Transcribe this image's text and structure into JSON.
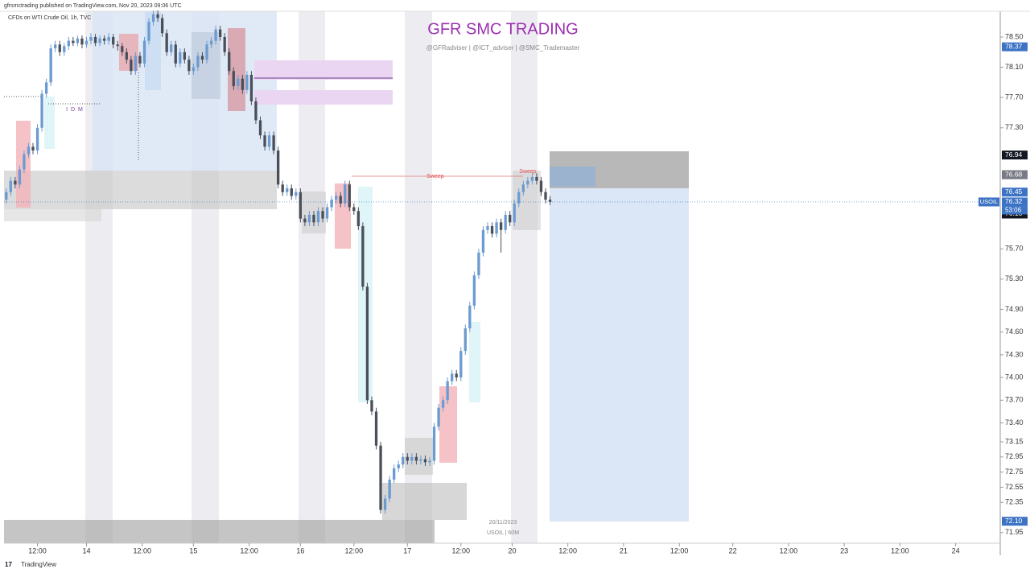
{
  "header": {
    "publisher": "gfrsmctrading published on TradingView.com, Nov 20, 2023 09:06 UTC",
    "symbol": "CFDs on WTI Crude Oil, 1h, TVC"
  },
  "footer": {
    "brand": "TradingView"
  },
  "chart_data": {
    "type": "candlestick",
    "title": "GFR SMC TRADING",
    "subtitle": "@GFRadviser  |  @ICT_adviser  |  @SMC_Trademaster",
    "up_color": "#6b9bd1",
    "down_color": "#4b4f5a",
    "annotations": [
      "I D M",
      "Sweep",
      "Sweep",
      "20/11/2023",
      "USOIL | 60M"
    ],
    "symbol_label": "USOIL",
    "countdown": "53:06",
    "price_labels": [
      {
        "value": 78.37,
        "color": "#3d73c4"
      },
      {
        "value": 76.94,
        "color": "#131722"
      },
      {
        "value": 76.68,
        "color": "#787b86"
      },
      {
        "value": 76.68,
        "color": "#787b86"
      },
      {
        "value": 76.45,
        "color": "#3d73c4"
      },
      {
        "value": 76.32,
        "color": "#3d73c4"
      },
      {
        "value": 76.17,
        "color": "#131722"
      },
      {
        "value": 76.16,
        "color": "#131722"
      },
      {
        "value": 72.1,
        "label": "72.10",
        "color": "#3d73c4"
      }
    ],
    "xlim": [
      -0.5,
      223
    ],
    "ylim": [
      71.81,
      78.84
    ],
    "xticks": [
      {
        "value": 7,
        "label": "12:00"
      },
      {
        "value": 18,
        "label": "14"
      },
      {
        "value": 30.5,
        "label": "12:00"
      },
      {
        "value": 42,
        "label": "15"
      },
      {
        "value": 54.5,
        "label": "12:00"
      },
      {
        "value": 66,
        "label": "16"
      },
      {
        "value": 78,
        "label": "12:00"
      },
      {
        "value": 90,
        "label": "17"
      },
      {
        "value": 102,
        "label": "12:00"
      },
      {
        "value": 113.5,
        "label": "20"
      },
      {
        "value": 126,
        "label": "12:00"
      },
      {
        "value": 138.5,
        "label": "21"
      },
      {
        "value": 151,
        "label": "12:00"
      },
      {
        "value": 163,
        "label": "22"
      },
      {
        "value": 175.5,
        "label": "12:00"
      },
      {
        "value": 188,
        "label": "23"
      },
      {
        "value": 200.5,
        "label": "12:00"
      },
      {
        "value": 213,
        "label": "24"
      }
    ],
    "yticks": [
      {
        "value": 78.5,
        "label": "78.50"
      },
      {
        "value": 78.1,
        "label": "78.10"
      },
      {
        "value": 77.7,
        "label": "77.70"
      },
      {
        "value": 77.3,
        "label": "77.30"
      },
      {
        "value": 75.7,
        "label": "75.70"
      },
      {
        "value": 75.3,
        "label": "75.30"
      },
      {
        "value": 74.9,
        "label": "74.90"
      },
      {
        "value": 74.6,
        "label": "74.60"
      },
      {
        "value": 74.3,
        "label": "74.30"
      },
      {
        "value": 74,
        "label": "74.00"
      },
      {
        "value": 73.7,
        "label": "73.70"
      },
      {
        "value": 73.4,
        "label": "73.40"
      },
      73.15,
      72.95,
      72.75,
      72.55,
      72.35,
      {
        "value": 71.95,
        "label": "71.95"
      }
    ],
    "x": [
      0,
      1,
      2,
      3,
      4,
      5,
      6,
      7,
      8,
      9,
      10,
      11,
      12,
      13,
      14,
      15,
      16,
      17,
      18,
      19,
      20,
      21,
      22,
      23,
      24,
      25,
      26,
      27,
      28,
      29,
      30,
      31,
      32,
      33,
      34,
      35,
      36,
      37,
      38,
      39,
      40,
      41,
      42,
      43,
      44,
      45,
      46,
      47,
      48,
      49,
      50,
      51,
      52,
      53,
      54,
      55,
      56,
      57,
      58,
      59,
      60,
      61,
      62,
      63,
      64,
      65,
      66,
      67,
      68,
      69,
      70,
      71,
      72,
      73,
      74,
      75,
      76,
      77,
      78,
      79,
      80,
      81,
      82,
      83,
      84,
      85,
      86,
      87,
      88,
      89,
      90,
      91,
      92,
      93,
      94,
      95,
      96,
      97,
      98,
      99,
      100,
      101,
      102,
      103,
      104,
      105,
      106,
      107,
      108,
      109,
      110,
      111,
      112,
      113,
      114,
      115,
      116,
      117,
      118,
      119,
      120,
      121,
      122
    ],
    "ohlc": [
      [
        76.35,
        76.5,
        76.3,
        76.45
      ],
      [
        76.45,
        76.65,
        76.4,
        76.6
      ],
      [
        76.6,
        76.65,
        76.5,
        76.55
      ],
      [
        76.55,
        76.8,
        76.5,
        76.75
      ],
      [
        76.75,
        77,
        76.7,
        76.95
      ],
      [
        76.95,
        77.1,
        76.9,
        77.05
      ],
      [
        77.05,
        77.1,
        76.95,
        77
      ],
      [
        77,
        77.35,
        76.95,
        77.3
      ],
      [
        77.3,
        77.8,
        77.25,
        77.75
      ],
      [
        77.75,
        77.95,
        77.7,
        77.9
      ],
      [
        77.9,
        78.4,
        77.85,
        78.35
      ],
      [
        78.35,
        78.45,
        78.3,
        78.4
      ],
      [
        78.4,
        78.45,
        78.25,
        78.3
      ],
      [
        78.3,
        78.42,
        78.25,
        78.38
      ],
      [
        78.38,
        78.5,
        78.33,
        78.45
      ],
      [
        78.45,
        78.5,
        78.38,
        78.42
      ],
      [
        78.42,
        78.52,
        78.38,
        78.48
      ],
      [
        78.48,
        78.52,
        78.35,
        78.4
      ],
      [
        78.4,
        78.5,
        78.36,
        78.45
      ],
      [
        78.45,
        78.55,
        78.4,
        78.5
      ],
      [
        78.5,
        78.54,
        78.38,
        78.42
      ],
      [
        78.42,
        78.52,
        78.38,
        78.48
      ],
      [
        78.48,
        78.52,
        78.4,
        78.45
      ],
      [
        78.45,
        78.55,
        78.4,
        78.5
      ],
      [
        78.5,
        78.54,
        78.35,
        78.4
      ],
      [
        78.4,
        78.45,
        78.32,
        78.38
      ],
      [
        78.38,
        78.42,
        78.25,
        78.3
      ],
      [
        78.3,
        78.35,
        78.15,
        78.2
      ],
      [
        78.2,
        78.25,
        78,
        78.05
      ],
      [
        78.05,
        78.3,
        78,
        78.25
      ],
      [
        78.25,
        78.3,
        78.1,
        78.15
      ],
      [
        78.15,
        78.5,
        78.1,
        78.45
      ],
      [
        78.45,
        78.75,
        78.4,
        78.7
      ],
      [
        78.7,
        78.85,
        78.65,
        78.8
      ],
      [
        78.8,
        78.85,
        78.7,
        78.75
      ],
      [
        78.75,
        78.8,
        78.5,
        78.55
      ],
      [
        78.55,
        78.6,
        78.25,
        78.3
      ],
      [
        78.3,
        78.45,
        78.25,
        78.4
      ],
      [
        78.4,
        78.45,
        78.1,
        78.15
      ],
      [
        78.15,
        78.35,
        78.1,
        78.3
      ],
      [
        78.3,
        78.35,
        78.15,
        78.2
      ],
      [
        78.2,
        78.25,
        78,
        78.05
      ],
      [
        78.05,
        78.15,
        78,
        78.1
      ],
      [
        78.1,
        78.3,
        78.05,
        78.25
      ],
      [
        78.25,
        78.3,
        78.15,
        78.2
      ],
      [
        78.2,
        78.45,
        78.15,
        78.4
      ],
      [
        78.4,
        78.5,
        78.35,
        78.45
      ],
      [
        78.45,
        78.65,
        78.4,
        78.6
      ],
      [
        78.6,
        78.65,
        78.45,
        78.5
      ],
      [
        78.5,
        78.55,
        78.25,
        78.3
      ],
      [
        78.3,
        78.35,
        78,
        78.05
      ],
      [
        78.05,
        78.1,
        77.8,
        77.85
      ],
      [
        77.85,
        78,
        77.8,
        77.95
      ],
      [
        77.95,
        78,
        77.75,
        77.8
      ],
      [
        77.8,
        78.05,
        77.75,
        78
      ],
      [
        78,
        78.05,
        77.6,
        77.65
      ],
      [
        77.65,
        77.7,
        77.35,
        77.4
      ],
      [
        77.4,
        77.45,
        77.15,
        77.2
      ],
      [
        77.2,
        77.25,
        77,
        77.05
      ],
      [
        77.05,
        77.25,
        77,
        77.2
      ],
      [
        77.2,
        77.25,
        76.95,
        77
      ],
      [
        77,
        77.05,
        76.5,
        76.55
      ],
      [
        76.55,
        76.6,
        76.4,
        76.45
      ],
      [
        76.45,
        76.55,
        76.4,
        76.5
      ],
      [
        76.5,
        76.55,
        76.35,
        76.4
      ],
      [
        76.4,
        76.5,
        76.35,
        76.45
      ],
      [
        76.45,
        76.5,
        76.05,
        76.1
      ],
      [
        76.1,
        76.15,
        76,
        76.05
      ],
      [
        76.05,
        76.2,
        76,
        76.15
      ],
      [
        76.15,
        76.2,
        76,
        76.05
      ],
      [
        76.05,
        76.25,
        76,
        76.2
      ],
      [
        76.2,
        76.25,
        76.05,
        76.1
      ],
      [
        76.1,
        76.3,
        76.05,
        76.25
      ],
      [
        76.25,
        76.4,
        76.2,
        76.35
      ],
      [
        76.35,
        76.45,
        76.3,
        76.4
      ],
      [
        76.4,
        76.45,
        76.25,
        76.3
      ],
      [
        76.3,
        76.6,
        76.25,
        76.55
      ],
      [
        76.55,
        76.6,
        76.2,
        76.25
      ],
      [
        76.25,
        76.3,
        76.15,
        76.2
      ],
      [
        76.2,
        76.25,
        75.95,
        76
      ],
      [
        76,
        76.05,
        75.15,
        75.2
      ],
      [
        75.2,
        75.25,
        73.65,
        73.7
      ],
      [
        73.7,
        73.75,
        73.5,
        73.55
      ],
      [
        73.55,
        73.6,
        73.05,
        73.1
      ],
      [
        73.1,
        73.15,
        72.2,
        72.25
      ],
      [
        72.25,
        72.45,
        72.2,
        72.4
      ],
      [
        72.4,
        72.7,
        72.35,
        72.65
      ],
      [
        72.65,
        72.85,
        72.6,
        72.8
      ],
      [
        72.8,
        72.9,
        72.75,
        72.85
      ],
      [
        72.85,
        73,
        72.8,
        72.95
      ],
      [
        72.95,
        73,
        72.85,
        72.9
      ],
      [
        72.9,
        73,
        72.85,
        72.95
      ],
      [
        72.95,
        73,
        72.85,
        72.9
      ],
      [
        72.9,
        72.97,
        72.85,
        72.92
      ],
      [
        72.92,
        72.97,
        72.83,
        72.88
      ],
      [
        72.88,
        72.95,
        72.83,
        72.9
      ],
      [
        72.9,
        73.4,
        72.85,
        73.35
      ],
      [
        73.35,
        73.65,
        73.3,
        73.6
      ],
      [
        73.6,
        73.75,
        73.55,
        73.7
      ],
      [
        73.7,
        74,
        73.65,
        73.95
      ],
      [
        73.95,
        74.1,
        73.9,
        74.05
      ],
      [
        74.05,
        74.1,
        73.95,
        74
      ],
      [
        74,
        74.4,
        73.95,
        74.35
      ],
      [
        74.35,
        74.7,
        74.3,
        74.65
      ],
      [
        74.65,
        75,
        74.6,
        74.95
      ],
      [
        74.95,
        75.4,
        74.9,
        75.35
      ],
      [
        75.35,
        75.7,
        75.3,
        75.65
      ],
      [
        75.65,
        76,
        75.6,
        75.95
      ],
      [
        75.95,
        76.05,
        75.9,
        76
      ],
      [
        76,
        76.05,
        75.85,
        75.9
      ],
      [
        75.9,
        76.1,
        75.85,
        76.05
      ],
      [
        76.05,
        76.1,
        75.65,
        75.95
      ],
      [
        75.95,
        76.2,
        75.9,
        76.15
      ],
      [
        76.15,
        76.2,
        76,
        76.05
      ],
      [
        76.05,
        76.35,
        76,
        76.3
      ],
      [
        76.3,
        76.5,
        76.25,
        76.45
      ],
      [
        76.45,
        76.6,
        76.4,
        76.55
      ],
      [
        76.55,
        76.65,
        76.5,
        76.6
      ],
      [
        76.6,
        76.7,
        76.55,
        76.65
      ],
      [
        76.65,
        76.7,
        76.55,
        76.6
      ],
      [
        76.6,
        76.65,
        76.4,
        76.45
      ],
      [
        76.45,
        76.5,
        76.3,
        76.35
      ],
      [
        76.35,
        76.4,
        76.28,
        76.32
      ]
    ]
  }
}
